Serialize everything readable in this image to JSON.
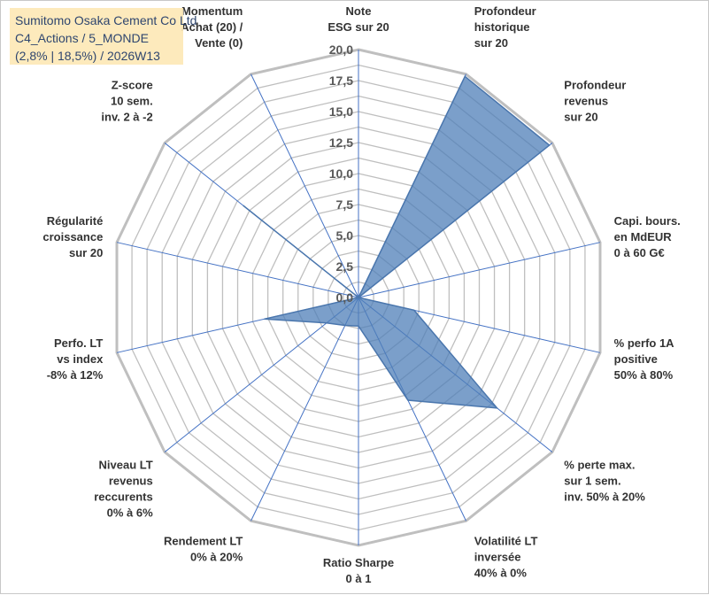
{
  "header": {
    "line1": "Sumitomo Osaka Cement Co Ltd",
    "line2": "C4_Actions / 5_MONDE",
    "line3": "(2,8% | 18,5%) / 2026W13"
  },
  "chart_data": {
    "type": "radar",
    "rmax": 20,
    "tick_step": 2.5,
    "tick_labels": [
      "0,0",
      "2,5",
      "5,0",
      "7,5",
      "10,0",
      "12,5",
      "15,0",
      "17,5",
      "20,0"
    ],
    "grid": true,
    "colors": {
      "series_fill": "#4f7fb8",
      "series_stroke": "#4a76ad",
      "grid": "#bfbfbf",
      "spoke": "#4472c4"
    },
    "axes": [
      {
        "lines": [
          "Note",
          "ESG sur 20"
        ]
      },
      {
        "lines": [
          "Profondeur",
          "historique",
          "sur 20"
        ]
      },
      {
        "lines": [
          "Profondeur",
          "revenus",
          "sur 20"
        ]
      },
      {
        "lines": [
          "Capi. bours.",
          "en MdEUR",
          "0 à 60 G€"
        ]
      },
      {
        "lines": [
          "% perfo 1A",
          "positive",
          "50% à 80%"
        ]
      },
      {
        "lines": [
          "% perte max.",
          "sur 1 sem.",
          "inv. 50% à 20%"
        ]
      },
      {
        "lines": [
          "Volatilité LT",
          "inversée",
          "40% à 0%"
        ]
      },
      {
        "lines": [
          "Ratio Sharpe",
          "0 à 1"
        ]
      },
      {
        "lines": [
          "Rendement LT",
          "0% à 20%"
        ]
      },
      {
        "lines": [
          "Niveau LT",
          "revenus",
          "reccurents",
          "0% à 6%"
        ]
      },
      {
        "lines": [
          "Perfo. LT",
          "vs index",
          "-8% à 12%"
        ]
      },
      {
        "lines": [
          "Régularité",
          "croissance",
          "sur 20"
        ]
      },
      {
        "lines": [
          "Z-score",
          "10 sem.",
          "inv. 2 à -2"
        ]
      },
      {
        "lines": [
          "Momentum",
          "Achat (20) /",
          "Vente (0)"
        ]
      }
    ],
    "series": [
      {
        "values": [
          0,
          19.8,
          19.7,
          0,
          4.6,
          14.3,
          9.2,
          2.3,
          2.5,
          3.3,
          7.8,
          0,
          11.9,
          0
        ]
      }
    ]
  }
}
